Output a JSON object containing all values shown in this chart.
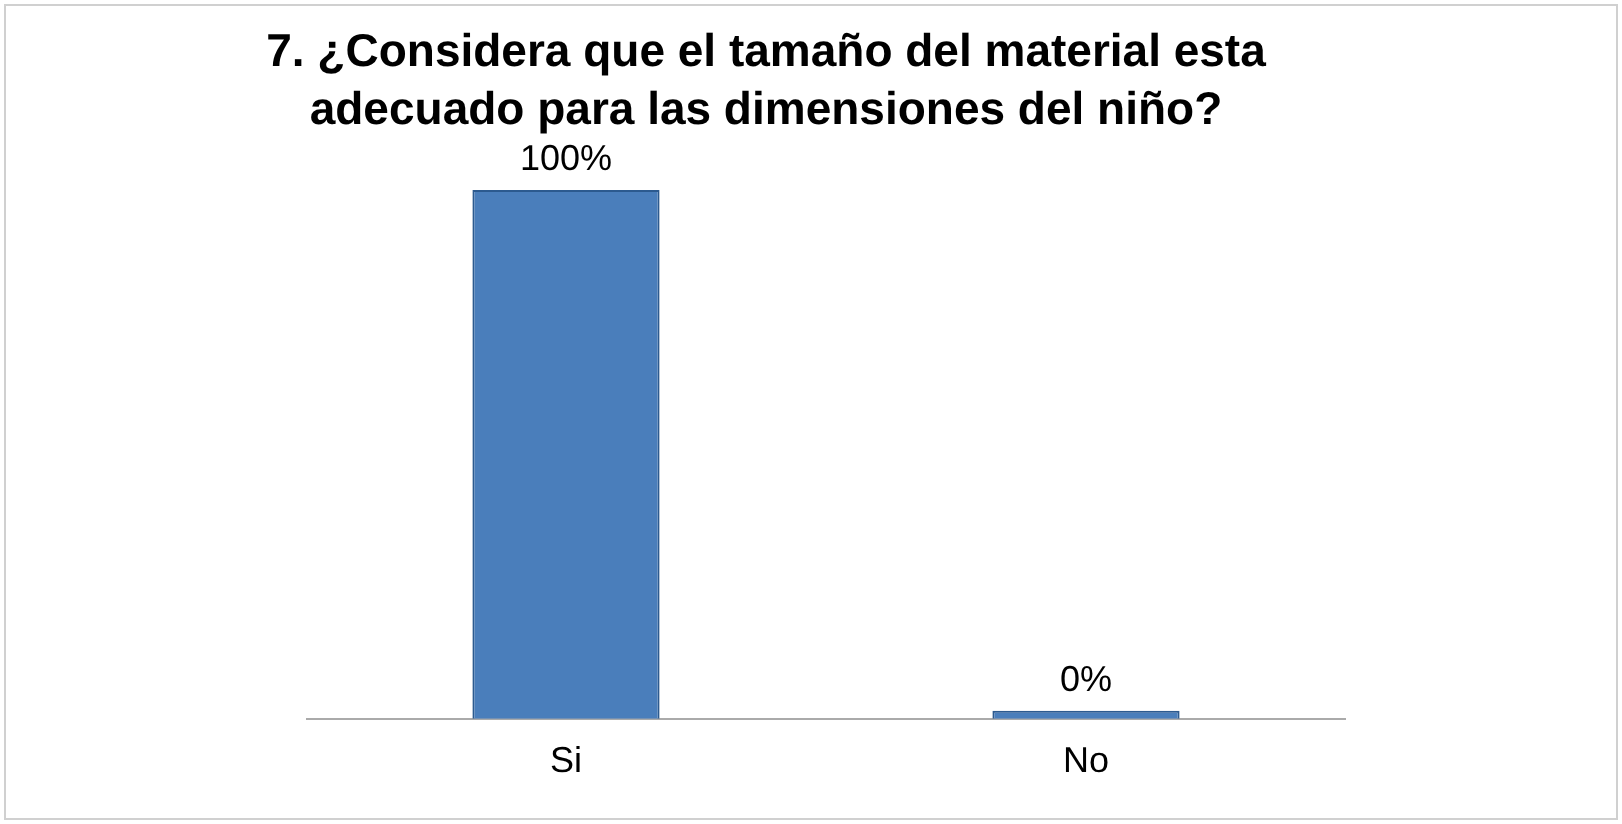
{
  "chart_data": {
    "type": "bar",
    "title": "7. ¿Considera que el tamaño del material esta adecuado para las dimensiones del niño?",
    "categories": [
      "Si",
      "No"
    ],
    "values": [
      100,
      0
    ],
    "color": "#4a7ebb",
    "ylim": [
      0,
      100
    ],
    "value_labels": [
      "100%",
      "0%"
    ],
    "grid": false,
    "legend": false
  }
}
